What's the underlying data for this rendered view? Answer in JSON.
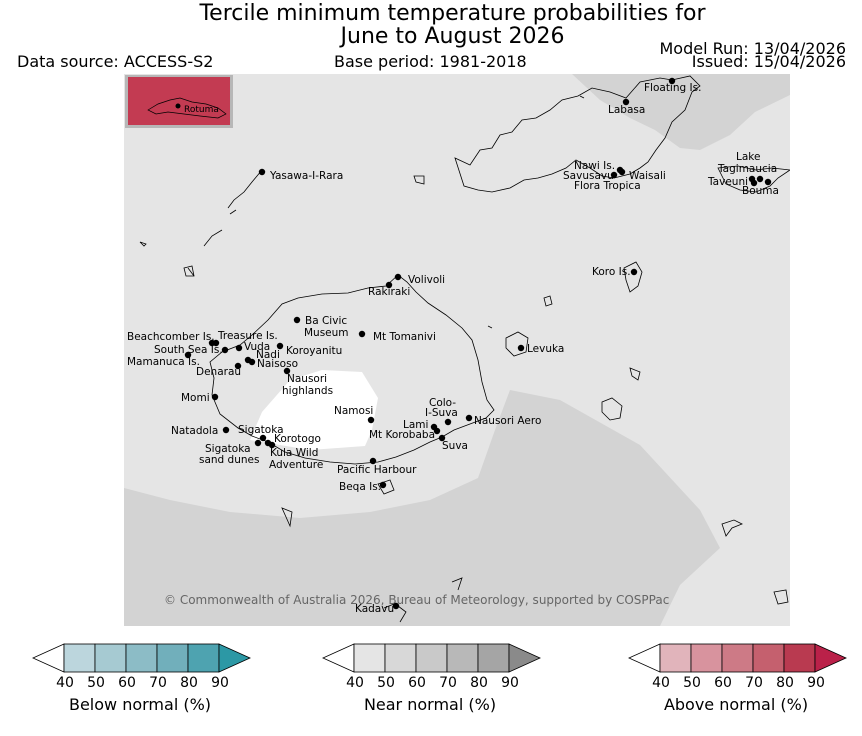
{
  "header": {
    "title": "Tercile minimum temperature probabilities for\nJune to August 2026",
    "data_source": "Data source: ACCESS-S2",
    "base_period": "Base period: 1981-2018",
    "model_run": "Model Run: 13/04/2026",
    "issued": "Issued: 15/04/2026"
  },
  "map": {
    "copyright": "© Commonwealth of Australia 2026, Bureau of Meteorology, supported by COSPPac",
    "colors": {
      "near_normal_light": "#e5e5e5",
      "near_normal_dark": "#d3d3d3",
      "no_signal": "#ffffff",
      "above_normal_80": "#c33b52",
      "coastline": "#000000",
      "station": "#000000",
      "copyright_text": "#666666"
    },
    "inset_label": "Rotuma",
    "places": [
      {
        "name": "Floating Is."
      },
      {
        "name": "Labasa"
      },
      {
        "name": "Yasawa-I-Rara"
      },
      {
        "name": "Nawi Is."
      },
      {
        "name": "Savusavu"
      },
      {
        "name": "Waisali"
      },
      {
        "name": "Flora Tropica"
      },
      {
        "name": "Lake"
      },
      {
        "name": "Tagimaucia"
      },
      {
        "name": "Taveuni"
      },
      {
        "name": "Bouma"
      },
      {
        "name": "Koro Is."
      },
      {
        "name": "Volivoli"
      },
      {
        "name": "Rakiraki"
      },
      {
        "name": "Ba Civic"
      },
      {
        "name": "Museum"
      },
      {
        "name": "Mt Tomanivi"
      },
      {
        "name": "Beachcomber Is."
      },
      {
        "name": "Treasure Is."
      },
      {
        "name": "South Sea Is."
      },
      {
        "name": "Vuda"
      },
      {
        "name": "Koroyanitu"
      },
      {
        "name": "Nadi"
      },
      {
        "name": "Mamanuca Is."
      },
      {
        "name": "Naisoso"
      },
      {
        "name": "Denarau"
      },
      {
        "name": "Levuka"
      },
      {
        "name": "Nausori"
      },
      {
        "name": "highlands"
      },
      {
        "name": "Momi"
      },
      {
        "name": "Namosi"
      },
      {
        "name": "Colo-"
      },
      {
        "name": "I-Suva"
      },
      {
        "name": "Nausori Aero"
      },
      {
        "name": "Lami"
      },
      {
        "name": "Mt Korobaba"
      },
      {
        "name": "Natadola"
      },
      {
        "name": "Sigatoka"
      },
      {
        "name": "Korotogo"
      },
      {
        "name": "Suva"
      },
      {
        "name": "Sigatoka"
      },
      {
        "name": "sand dunes"
      },
      {
        "name": "Kula Wild"
      },
      {
        "name": "Adventure"
      },
      {
        "name": "Pacific Harbour"
      },
      {
        "name": "Beqa Is."
      },
      {
        "name": "Kadavu"
      }
    ]
  },
  "colorbars": [
    {
      "label": "Below normal (%)",
      "ticks": [
        "40",
        "50",
        "60",
        "70",
        "80",
        "90"
      ],
      "colors": [
        "#ffffff",
        "#bcd6dd",
        "#a6cad2",
        "#8cbcc6",
        "#71afbb",
        "#4ea3b0",
        "#2c98a5"
      ]
    },
    {
      "label": "Near normal (%)",
      "ticks": [
        "40",
        "50",
        "60",
        "70",
        "80",
        "90"
      ],
      "colors": [
        "#ffffff",
        "#e5e5e5",
        "#d8d8d8",
        "#c9c9c9",
        "#b8b8b8",
        "#a5a5a5",
        "#8a8a8a"
      ]
    },
    {
      "label": "Above normal (%)",
      "ticks": [
        "40",
        "50",
        "60",
        "70",
        "80",
        "90"
      ],
      "colors": [
        "#ffffff",
        "#e1b4bb",
        "#d8939e",
        "#cd7a86",
        "#c5606e",
        "#b93a50",
        "#ba2149"
      ]
    }
  ]
}
